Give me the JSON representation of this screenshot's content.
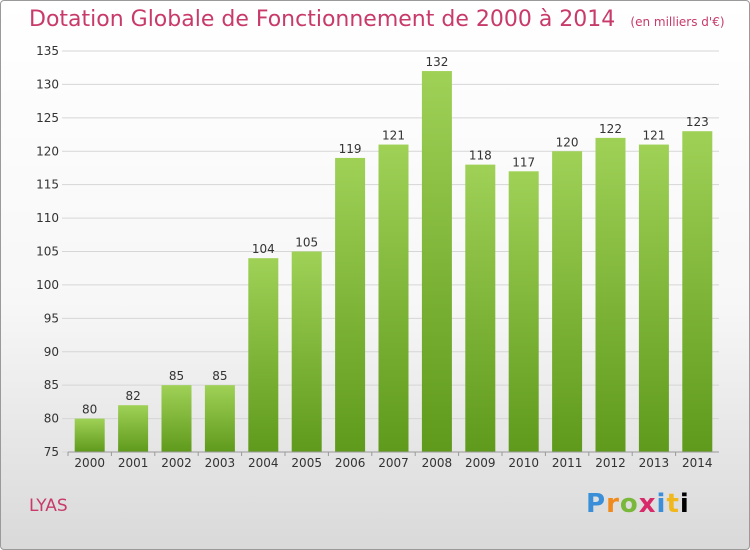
{
  "chart_data": {
    "type": "bar",
    "title": "Dotation Globale de Fonctionnement de 2000 à 2014",
    "subtitle": "(en milliers d'€)",
    "categories": [
      "2000",
      "2001",
      "2002",
      "2003",
      "2004",
      "2005",
      "2006",
      "2007",
      "2008",
      "2009",
      "2010",
      "2011",
      "2012",
      "2013",
      "2014"
    ],
    "values": [
      80,
      82,
      85,
      85,
      104,
      105,
      119,
      121,
      132,
      118,
      117,
      120,
      122,
      121,
      123
    ],
    "ylim": [
      75,
      135
    ],
    "yticks": [
      75,
      80,
      85,
      90,
      95,
      100,
      105,
      110,
      115,
      120,
      125,
      130,
      135
    ],
    "grid": true,
    "bar_color": "#8cc63e"
  },
  "footer": {
    "commune": "LYAS",
    "logo": "Proxiti"
  }
}
